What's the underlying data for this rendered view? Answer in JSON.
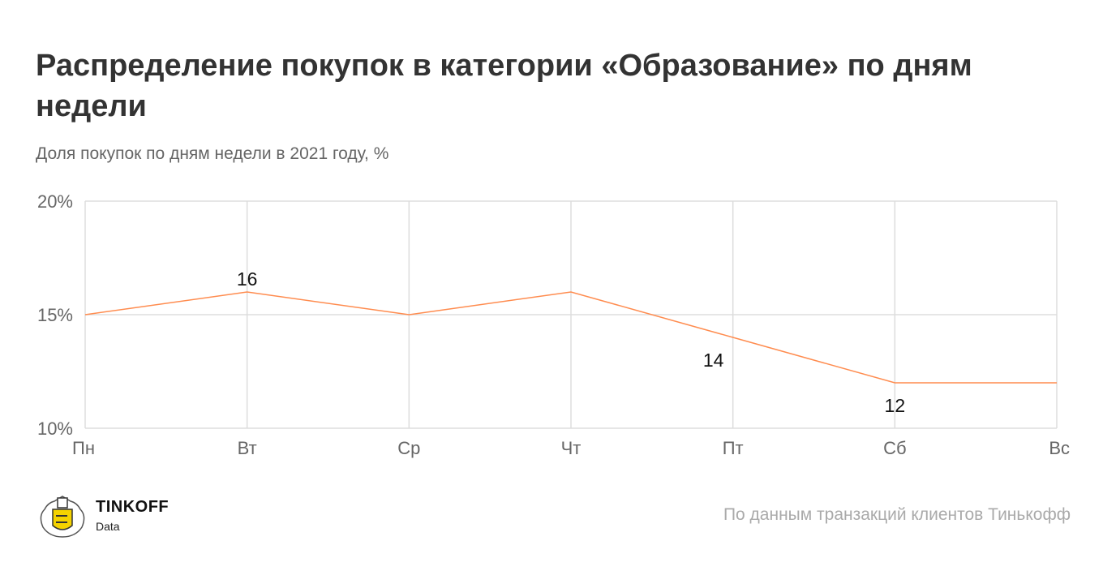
{
  "title": "Распределение покупок в категории «Образование» по дням недели",
  "subtitle": "Доля покупок по дням недели в 2021 году, %",
  "source": "По данным транзакций клиентов Тинькофф",
  "brand": {
    "name": "TINKOFF",
    "sub": "Data"
  },
  "chart_data": {
    "type": "line",
    "categories": [
      "Пн",
      "Вт",
      "Ср",
      "Чт",
      "Пт",
      "Сб",
      "Вс"
    ],
    "series": [
      {
        "values": [
          15,
          16,
          15,
          16,
          14,
          12,
          12
        ]
      }
    ],
    "data_labels": [
      {
        "category": "Вт",
        "text": "16",
        "position": "above"
      },
      {
        "category": "Пт",
        "text": "14",
        "position": "below"
      },
      {
        "category": "Сб",
        "text": "12",
        "position": "below"
      }
    ],
    "ylim": [
      10,
      20
    ],
    "yticks": [
      10,
      15,
      20
    ],
    "ytick_labels": [
      "10%",
      "15%",
      "20%"
    ],
    "grid": true,
    "line_color": "#ff8c4f",
    "grid_color": "#dddddd"
  }
}
